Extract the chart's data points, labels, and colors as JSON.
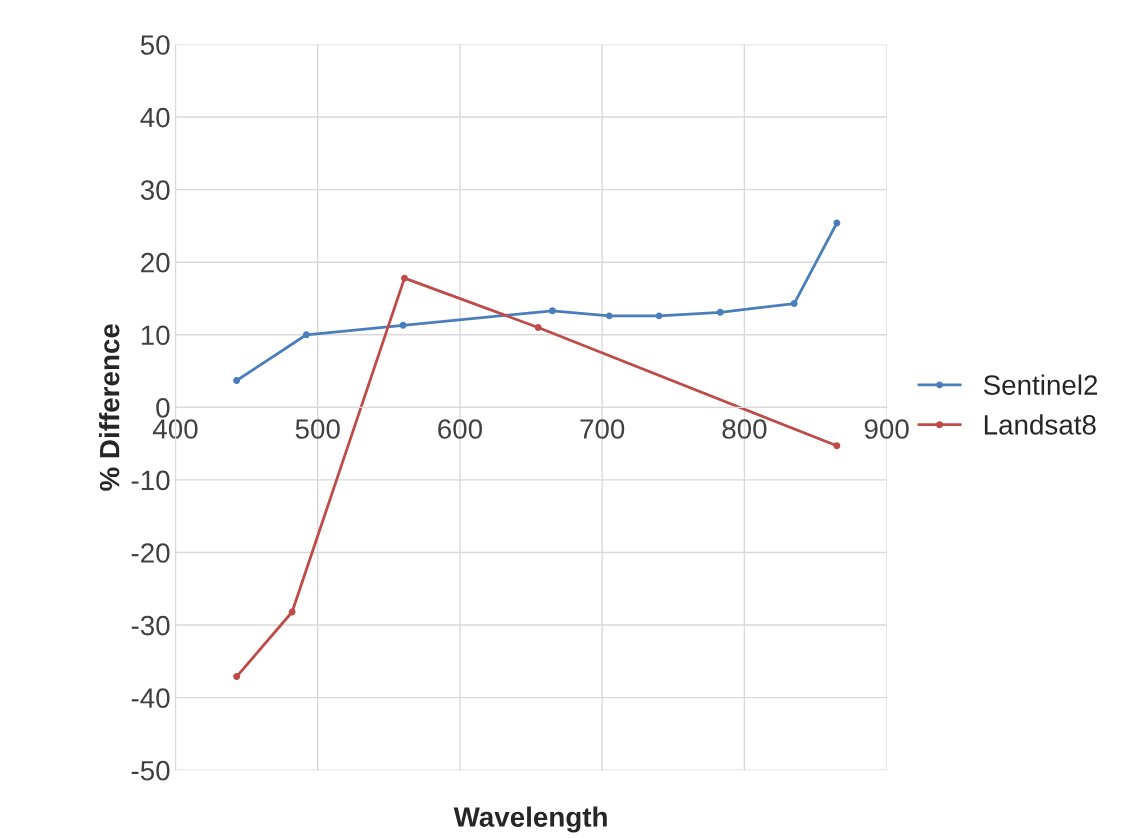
{
  "chart_data": {
    "type": "line",
    "xlabel": "Wavelength",
    "ylabel": "% Difference",
    "xlim": [
      400,
      900
    ],
    "xticks": [
      400,
      500,
      600,
      700,
      800,
      900
    ],
    "ylim": [
      -50,
      50
    ],
    "yticks": [
      -50,
      -40,
      -30,
      -20,
      -10,
      0,
      10,
      20,
      30,
      40,
      50
    ],
    "grid": true,
    "legend": "right",
    "marker": "circle",
    "line_style": "solid",
    "series": [
      {
        "name": "Sentinel2",
        "color": "#4a7ebb",
        "x": [
          443,
          492,
          560,
          665,
          705,
          740,
          783,
          835,
          865
        ],
        "values": [
          3.7,
          10,
          11.3,
          13.3,
          12.6,
          12.6,
          13.1,
          14.3,
          25.4
        ]
      },
      {
        "name": "Landsat8",
        "color": "#be4b48",
        "x": [
          443,
          482,
          561,
          655,
          865
        ],
        "values": [
          -37.1,
          -28.2,
          17.8,
          11,
          -5.3
        ]
      }
    ]
  }
}
